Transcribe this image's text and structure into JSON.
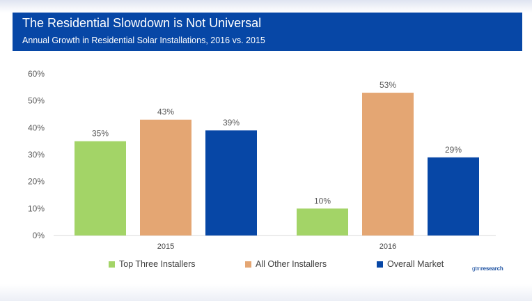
{
  "header": {
    "title": "The Residential Slowdown is Not Universal",
    "subtitle": "Annual Growth in Residential Solar Installations, 2016 vs. 2015"
  },
  "brand": {
    "prefix": "gtm",
    "suffix": "research"
  },
  "chart_data": {
    "type": "bar",
    "title": "The Residential Slowdown is Not Universal",
    "subtitle": "Annual Growth in Residential Solar Installations, 2016 vs. 2015",
    "categories": [
      "2015",
      "2016"
    ],
    "series": [
      {
        "name": "Top Three Installers",
        "values": [
          35,
          10
        ],
        "labels": [
          "35%",
          "10%"
        ],
        "color": "#a3d467"
      },
      {
        "name": "All Other Installers",
        "values": [
          43,
          53
        ],
        "labels": [
          "43%",
          "53%"
        ],
        "color": "#e4a673"
      },
      {
        "name": "Overall Market",
        "values": [
          39,
          29
        ],
        "labels": [
          "39%",
          "29%"
        ],
        "color": "#0747a6"
      }
    ],
    "yticks": [
      "0%",
      "10%",
      "20%",
      "30%",
      "40%",
      "50%",
      "60%"
    ],
    "ylim": [
      0,
      60
    ],
    "grid": false,
    "legend": "bottom",
    "xlabel": "",
    "ylabel": ""
  }
}
